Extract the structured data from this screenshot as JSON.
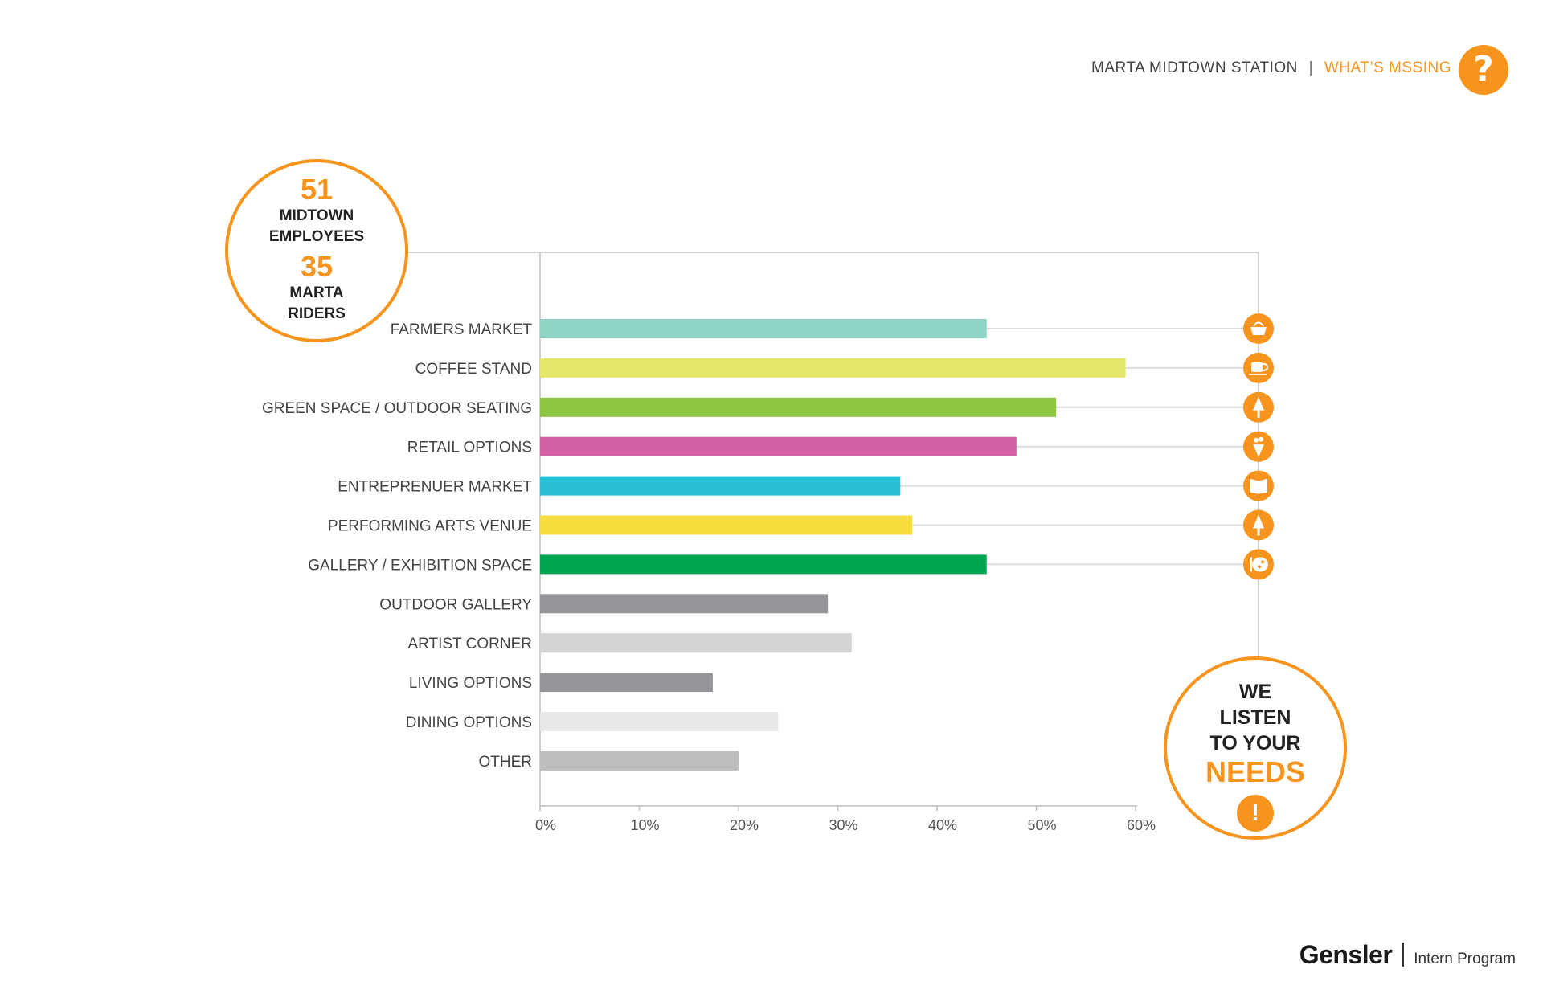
{
  "header": {
    "station": "MARTA MIDTOWN STATION",
    "separator": "|",
    "section": "WHAT’S MSSING",
    "help_glyph": "?"
  },
  "stats": {
    "employees_count": "51",
    "employees_label_1": "MIDTOWN",
    "employees_label_2": "EMPLOYEES",
    "riders_count": "35",
    "riders_label_1": "MARTA",
    "riders_label_2": "RIDERS"
  },
  "needs": {
    "line1": "WE",
    "line2": "LISTEN",
    "line3": "TO YOUR",
    "accent": "NEEDS",
    "glyph": "!"
  },
  "footer": {
    "brand": "Gensler",
    "program": "Intern Program"
  },
  "chart_data": {
    "type": "bar",
    "orientation": "horizontal",
    "categories": [
      "FARMERS MARKET",
      "COFFEE STAND",
      "GREEN SPACE / OUTDOOR SEATING",
      "RETAIL OPTIONS",
      "ENTREPRENUER MARKET",
      "PERFORMING ARTS VENUE",
      "GALLERY / EXHIBITION SPACE",
      "OUTDOOR GALLERY",
      "ARTIST CORNER",
      "LIVING OPTIONS",
      "DINING OPTIONS",
      "OTHER"
    ],
    "values": [
      45,
      59,
      52,
      48,
      36.3,
      37.5,
      45,
      29,
      31.4,
      17.4,
      24,
      20
    ],
    "colors": [
      "#8fd3c6",
      "#e3e86c",
      "#8dc63f",
      "#d25fa3",
      "#28bed6",
      "#f6dd3c",
      "#00a651",
      "#939598",
      "#d1d3d4",
      "#939598",
      "#e6e7e8",
      "#bcbec0"
    ],
    "xlim": [
      0,
      60
    ],
    "ticks": [
      "0%",
      "10%",
      "20%",
      "30%",
      "40%",
      "50%",
      "60%"
    ],
    "tick_values": [
      0,
      10,
      20,
      30,
      40,
      50,
      60
    ],
    "icons": [
      "basket-icon",
      "coffee-cup-icon",
      "tree-icon",
      "shopping-bag-icon",
      "book-icon",
      "tree-icon",
      "paint-palette-icon"
    ],
    "accent_color": "#f7941d"
  }
}
